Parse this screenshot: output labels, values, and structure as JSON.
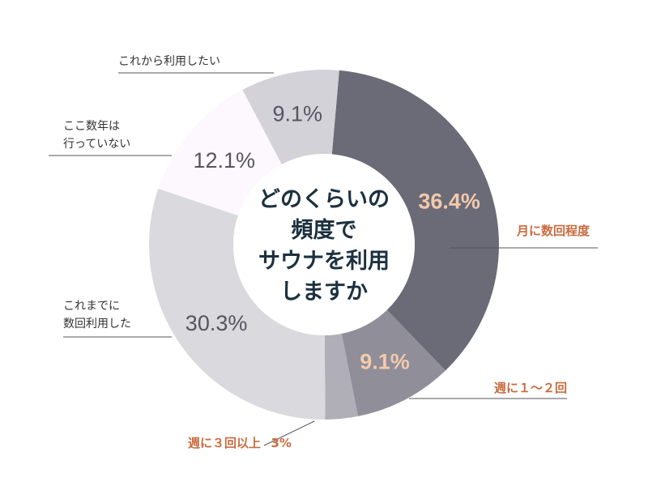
{
  "chart_data": {
    "type": "pie",
    "donut": true,
    "title": "どのくらいの頻度でサウナを利用しますか",
    "title_lines": [
      "どのくらいの",
      "頻度で",
      "サウナを利用",
      "しますか"
    ],
    "unit": "%",
    "slices": [
      {
        "label": "月に数回程度",
        "value": 36.4,
        "value_label": "36.4%",
        "color": "#6b6b78",
        "text_color": "#f3c9ad",
        "label_color": "#c96a3d"
      },
      {
        "label": "週に１〜２回",
        "value": 9.1,
        "value_label": "9.1%",
        "color": "#8f8e99",
        "text_color": "#f3c9ad",
        "label_color": "#c96a3d"
      },
      {
        "label": "週に３回以上",
        "value": 3.0,
        "value_label": "3%",
        "color": "#b0afb8",
        "text_color": "#c96a3d",
        "label_color": "#c96a3d"
      },
      {
        "label": "これまでに数回利用した",
        "label_lines": [
          "これまでに",
          "数回利用した"
        ],
        "value": 30.3,
        "value_label": "30.3%",
        "color": "#dad9de",
        "text_color": "#55555f",
        "label_color": "#333333"
      },
      {
        "label": "ここ数年は行っていない",
        "label_lines": [
          "ここ数年は",
          "行っていない"
        ],
        "value": 12.1,
        "value_label": "12.1%",
        "color": "#fdf8fd",
        "text_color": "#55555f",
        "label_color": "#333333"
      },
      {
        "label": "これから利用したい",
        "value": 9.1,
        "value_label": "9.1%",
        "color": "#d3d2d8",
        "text_color": "#55555f",
        "label_color": "#333333"
      }
    ],
    "start_angle_deg": 5,
    "legend": "none"
  }
}
